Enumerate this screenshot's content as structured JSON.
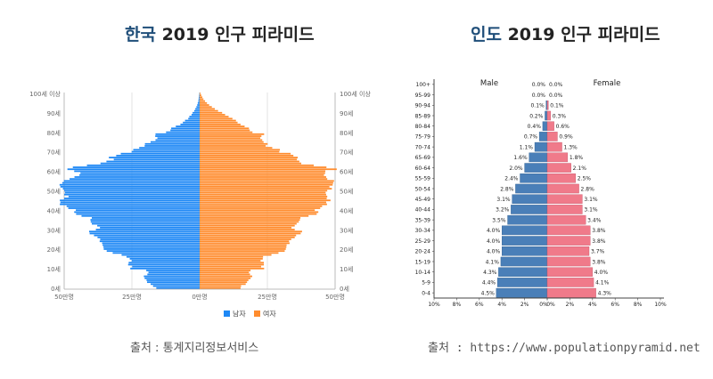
{
  "titles": {
    "left": {
      "highlight": "한국",
      "rest": " 2019 인구 피라미드"
    },
    "right": {
      "highlight": "인도",
      "rest": " 2019 인구 피라미드"
    }
  },
  "sources": {
    "left": "출처 : 통계지리정보서비스",
    "right": "출처 : https://www.populationpyramid.net"
  },
  "colors": {
    "korea_male": "#1e88f5",
    "korea_female": "#ff8c2e",
    "india_male": "#4a7fb8",
    "india_female": "#f07a8a"
  },
  "chart_data": [
    {
      "type": "bar",
      "orientation": "horizontal-pyramid",
      "country": "Korea",
      "y_tick_labels": [
        "0세",
        "10세",
        "20세",
        "30세",
        "40세",
        "50세",
        "60세",
        "70세",
        "80세",
        "90세",
        "100세 이상"
      ],
      "x_tick_labels": [
        "50만명",
        "25만명",
        "0만명",
        "25만명",
        "50만명"
      ],
      "xlim": [
        -50,
        50
      ],
      "x_unit": "만명",
      "legend": [
        "남자",
        "여자"
      ],
      "legend_position": "bottom",
      "ages": [
        0,
        1,
        2,
        3,
        4,
        5,
        6,
        7,
        8,
        9,
        10,
        11,
        12,
        13,
        14,
        15,
        16,
        17,
        18,
        19,
        20,
        21,
        22,
        23,
        24,
        25,
        26,
        27,
        28,
        29,
        30,
        31,
        32,
        33,
        34,
        35,
        36,
        37,
        38,
        39,
        40,
        41,
        42,
        43,
        44,
        45,
        46,
        47,
        48,
        49,
        50,
        51,
        52,
        53,
        54,
        55,
        56,
        57,
        58,
        59,
        60,
        61,
        62,
        63,
        64,
        65,
        66,
        67,
        68,
        69,
        70,
        71,
        72,
        73,
        74,
        75,
        76,
        77,
        78,
        79,
        80,
        81,
        82,
        83,
        84,
        85,
        86,
        87,
        88,
        89,
        90,
        91,
        92,
        93,
        94,
        95,
        96,
        97,
        98,
        99,
        100
      ],
      "series": [
        {
          "name": "남자",
          "values": [
            16.0,
            17.2,
            18.1,
            19.4,
            19.6,
            20.3,
            20.6,
            19.3,
            18.9,
            19.7,
            25.6,
            24.9,
            26.4,
            26.2,
            25.1,
            25.8,
            27.0,
            28.8,
            32.1,
            34.3,
            35.4,
            35.5,
            35.8,
            36.0,
            36.9,
            36.7,
            37.7,
            39.0,
            40.6,
            40.8,
            38.3,
            36.8,
            37.8,
            39.8,
            40.2,
            40.3,
            39.8,
            43.6,
            45.6,
            46.3,
            45.7,
            48.5,
            49.1,
            51.6,
            51.4,
            51.6,
            50.0,
            48.4,
            50.0,
            49.7,
            50.0,
            50.5,
            51.4,
            51.7,
            50.7,
            50.1,
            48.0,
            46.2,
            44.4,
            44.0,
            46.3,
            48.8,
            46.8,
            41.6,
            36.6,
            34.4,
            31.7,
            33.5,
            30.8,
            29.1,
            25.1,
            24.5,
            22.3,
            20.3,
            20.2,
            18.1,
            16.3,
            15.6,
            16.4,
            16.3,
            12.4,
            10.8,
            10.5,
            8.8,
            7.1,
            6.2,
            5.4,
            4.2,
            3.8,
            3.0,
            2.6,
            2.0,
            1.6,
            1.2,
            0.9,
            0.7,
            0.5,
            0.4,
            0.3,
            0.2,
            0.1
          ]
        },
        {
          "name": "여자",
          "values": [
            15.1,
            15.3,
            17.0,
            17.5,
            18.0,
            18.8,
            19.4,
            18.6,
            18.2,
            18.8,
            23.8,
            22.7,
            23.7,
            23.7,
            22.5,
            23.3,
            23.4,
            26.5,
            29.1,
            31.4,
            31.8,
            32.0,
            32.1,
            33.2,
            33.0,
            33.8,
            35.1,
            35.6,
            37.3,
            37.8,
            35.1,
            33.9,
            35.1,
            35.8,
            36.6,
            37.0,
            37.2,
            40.2,
            43.2,
            43.8,
            42.5,
            44.5,
            45.2,
            47.0,
            46.7,
            48.3,
            46.9,
            47.1,
            46.7,
            46.5,
            47.1,
            48.8,
            47.9,
            49.1,
            49.3,
            49.6,
            47.1,
            46.7,
            45.9,
            46.3,
            46.4,
            50.6,
            46.8,
            42.1,
            37.5,
            36.8,
            35.9,
            36.2,
            34.6,
            33.6,
            29.4,
            29.6,
            26.8,
            24.4,
            25.1,
            23.6,
            23.1,
            22.4,
            22.8,
            23.8,
            19.5,
            18.5,
            18.2,
            16.6,
            15.1,
            14.0,
            13.4,
            12.1,
            10.7,
            9.4,
            8.3,
            6.8,
            5.6,
            4.5,
            3.5,
            2.7,
            2.0,
            1.4,
            1.0,
            0.6,
            0.3
          ]
        }
      ]
    },
    {
      "type": "bar",
      "orientation": "horizontal-pyramid",
      "country": "India",
      "categories": [
        "0-4",
        "5-9",
        "10-14",
        "15-19",
        "20-24",
        "25-29",
        "30-34",
        "35-39",
        "40-44",
        "45-49",
        "50-54",
        "55-59",
        "60-64",
        "65-69",
        "70-74",
        "75-79",
        "80-84",
        "85-89",
        "90-94",
        "95-99",
        "100+"
      ],
      "x_tick_labels": [
        "10%",
        "8%",
        "6%",
        "4%",
        "2%",
        "0%",
        "0%",
        "2%",
        "4%",
        "6%",
        "8%",
        "10%"
      ],
      "xlim": [
        -10,
        10
      ],
      "x_unit": "%",
      "series_header_left": "Male",
      "series_header_right": "Female",
      "series": [
        {
          "name": "Male",
          "values": [
            4.5,
            4.4,
            4.3,
            4.1,
            4.0,
            4.0,
            4.0,
            3.5,
            3.2,
            3.1,
            2.8,
            2.4,
            2.0,
            1.6,
            1.1,
            0.7,
            0.4,
            0.2,
            0.1,
            0.0,
            0.0
          ]
        },
        {
          "name": "Female",
          "values": [
            4.3,
            4.1,
            4.0,
            3.8,
            3.7,
            3.8,
            3.8,
            3.4,
            3.1,
            3.1,
            2.8,
            2.5,
            2.1,
            1.8,
            1.3,
            0.9,
            0.6,
            0.3,
            0.1,
            0.0,
            0.0
          ]
        }
      ]
    }
  ]
}
